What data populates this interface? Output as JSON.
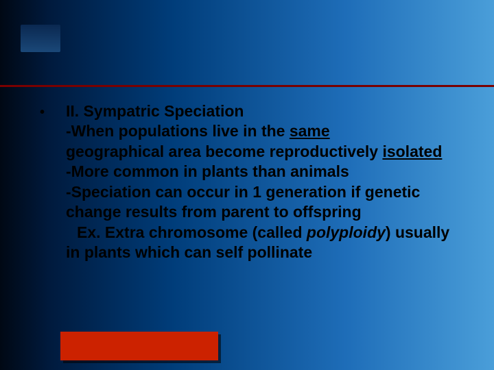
{
  "slide": {
    "background_gradient": [
      "#000814",
      "#001a3d",
      "#003d7a",
      "#1e6db8",
      "#4a9ed9"
    ],
    "divider_color": "#7a0000",
    "bottom_bar_color": "#cc2200",
    "text_color": "#000000",
    "font_size": 23,
    "font_weight": "bold",
    "bullet": {
      "marker": "•",
      "heading": "II. Sympatric Speciation",
      "lines": {
        "l1_prefix": "-When populations live in the ",
        "l1_underlined": "same",
        "l2": "geographical area become reproductively ",
        "l2_underlined": "isolated",
        "l3": "-More common in plants than animals",
        "l4": "-Speciation can occur in 1 generation if genetic change results from parent to offspring",
        "l5_prefix": "Ex. Extra chromosome (called ",
        "l5_italic": "polyploidy",
        "l5_suffix": ") usually in plants which can self pollinate"
      }
    }
  }
}
